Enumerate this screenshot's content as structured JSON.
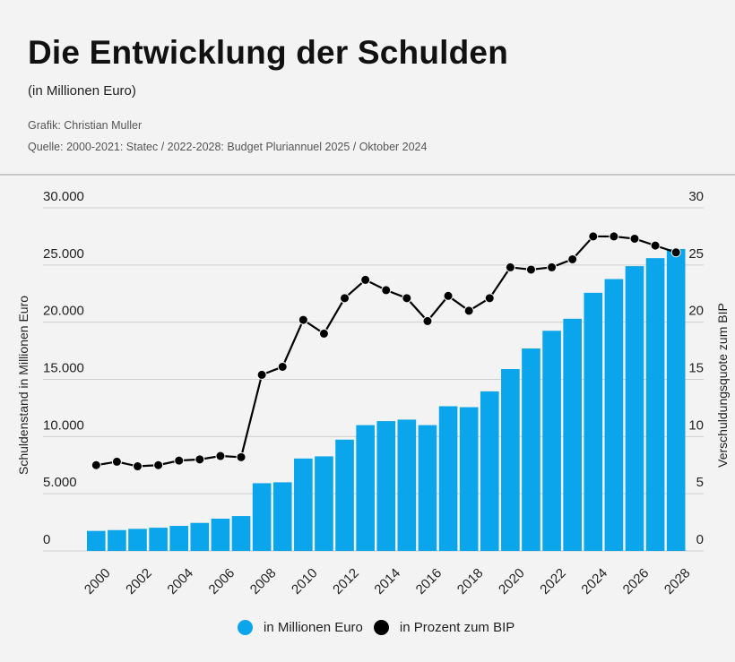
{
  "header": {
    "title": "Die Entwicklung der Schulden",
    "subtitle": "(in Millionen Euro)",
    "credit": "Grafik: Christian Muller",
    "source": "Quelle: 2000-2021: Statec / 2022-2028: Budget Pluriannuel 2025 / Oktober 2024"
  },
  "chart_data": {
    "type": "bar+line",
    "categories": [
      2000,
      2001,
      2002,
      2003,
      2004,
      2005,
      2006,
      2007,
      2008,
      2009,
      2010,
      2011,
      2012,
      2013,
      2014,
      2015,
      2016,
      2017,
      2018,
      2019,
      2020,
      2021,
      2022,
      2023,
      2024,
      2025,
      2026,
      2027,
      2028
    ],
    "x_tick_labels": [
      "2000",
      "2002",
      "2004",
      "2006",
      "2008",
      "2010",
      "2012",
      "2014",
      "2016",
      "2018",
      "2020",
      "2022",
      "2024",
      "2026",
      "2028"
    ],
    "series": [
      {
        "name": "in Millionen Euro",
        "type": "bar",
        "axis": "left",
        "color": "#0aa5ea",
        "values": [
          1750,
          1820,
          1930,
          2030,
          2190,
          2450,
          2820,
          3050,
          5920,
          6000,
          8080,
          8270,
          9730,
          11000,
          11350,
          11480,
          11000,
          12650,
          12570,
          13950,
          15900,
          17700,
          19250,
          20300,
          22570,
          23770,
          24900,
          25600,
          26400
        ]
      },
      {
        "name": "in Prozent zum BIP",
        "type": "line",
        "axis": "right",
        "color": "#000000",
        "values": [
          7.5,
          7.8,
          7.4,
          7.5,
          7.9,
          8.0,
          8.3,
          8.2,
          15.4,
          16.1,
          20.2,
          19.0,
          22.1,
          23.7,
          22.8,
          22.1,
          20.1,
          22.3,
          21.0,
          22.1,
          24.8,
          24.6,
          24.8,
          25.5,
          27.5,
          27.5,
          27.3,
          26.7,
          26.1
        ]
      }
    ],
    "ylabel_left": "Schuldenstand in Millionen Euro",
    "ylabel_right": "Verschuldungsquote zum BIP",
    "ylim_left": [
      0,
      30000
    ],
    "ylim_right": [
      0,
      30
    ],
    "y_ticks_left": [
      "0",
      "5.000",
      "10.000",
      "15.000",
      "20.000",
      "25.000",
      "30.000"
    ],
    "y_ticks_right": [
      "0",
      "5",
      "10",
      "15",
      "20",
      "25",
      "30"
    ],
    "grid": true,
    "legend_position": "bottom"
  },
  "legend": [
    {
      "label": "in Millionen Euro",
      "color": "#0aa5ea"
    },
    {
      "label": "in Prozent zum BIP",
      "color": "#000000"
    }
  ]
}
